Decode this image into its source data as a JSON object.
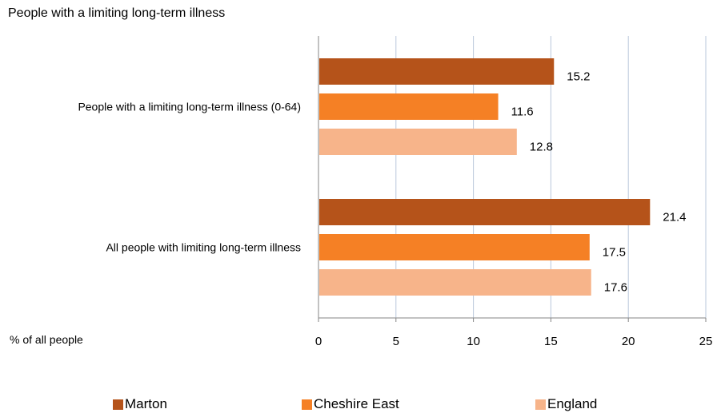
{
  "chart_data": {
    "type": "bar",
    "orientation": "horizontal",
    "title": "People with a limiting long-term illness",
    "xlabel": "% of all people",
    "xlim": [
      0,
      25
    ],
    "xticks": [
      0,
      5,
      10,
      15,
      20,
      25
    ],
    "grid": "vertical",
    "legend_position": "bottom",
    "categories": [
      "People with a limiting long-term illness (0-64)",
      "All people with limiting long-term illness"
    ],
    "series": [
      {
        "name": "Marton",
        "color": "#b5531a",
        "values": [
          15.2,
          21.4
        ]
      },
      {
        "name": "Cheshire East",
        "color": "#f58025",
        "values": [
          11.6,
          17.5
        ]
      },
      {
        "name": "England",
        "color": "#f7b48a",
        "values": [
          12.8,
          17.6
        ]
      }
    ]
  }
}
